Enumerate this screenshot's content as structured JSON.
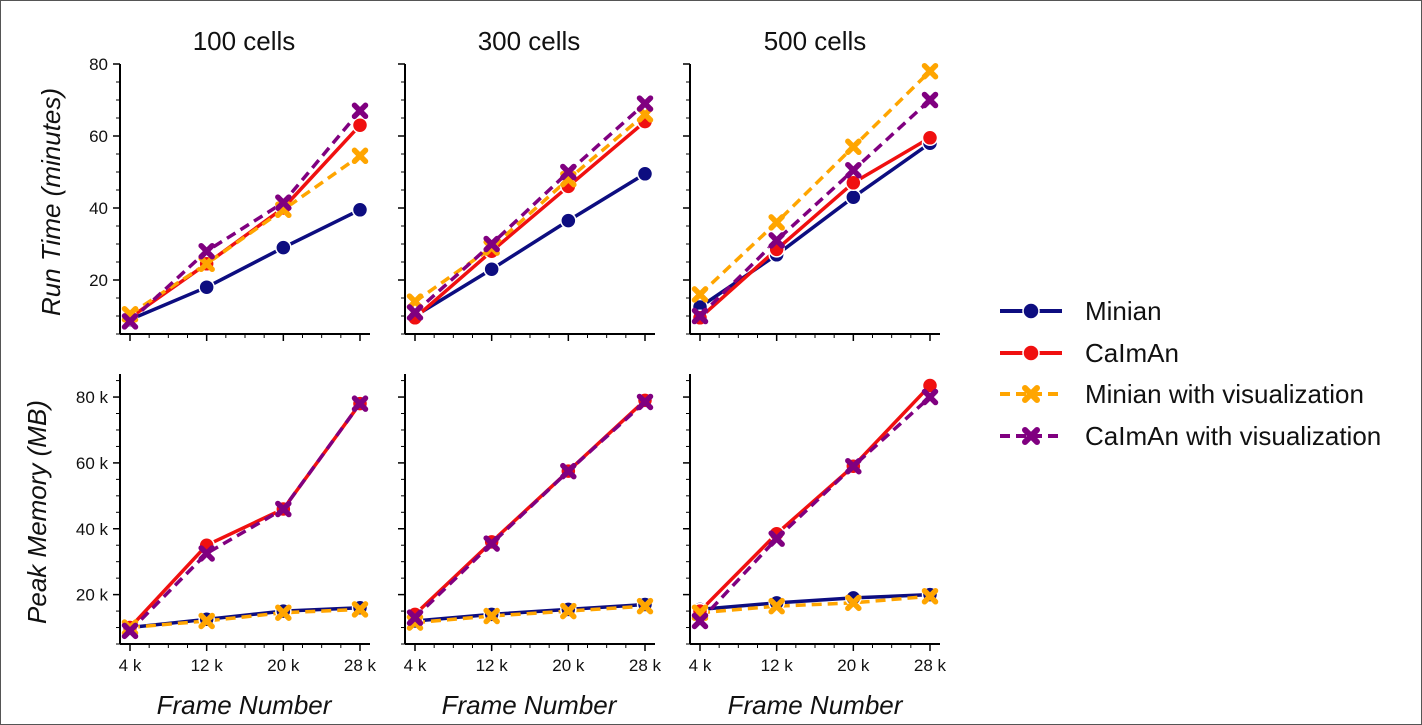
{
  "figure": {
    "columns": [
      "100 cells",
      "300 cells",
      "500 cells"
    ],
    "row_labels": [
      "Run Time (minutes)",
      "Peak Memory (MB)"
    ],
    "xlabel": "Frame Number"
  },
  "legend": [
    {
      "name": "Minian",
      "color": "#0d0d80",
      "style": "solid",
      "marker": "circle"
    },
    {
      "name": "CaImAn",
      "color": "#f01010",
      "style": "solid",
      "marker": "circle"
    },
    {
      "name": "Minian with visualization",
      "color": "#ffa500",
      "style": "dashed",
      "marker": "x"
    },
    {
      "name": "CaImAn with visualization",
      "color": "#800080",
      "style": "dashed",
      "marker": "x"
    }
  ],
  "chart_data": [
    {
      "type": "line",
      "title": "100 cells",
      "xlabel": "",
      "ylabel": "Run Time (minutes)",
      "x": [
        4000,
        12000,
        20000,
        28000
      ],
      "ylim": [
        5,
        80
      ],
      "yticks": [
        20,
        40,
        60,
        80
      ],
      "ytick_labels": [
        "20",
        "40",
        "60",
        "80"
      ],
      "xtick_labels": [],
      "series": [
        {
          "name": "Minian",
          "values": [
            9,
            18,
            29,
            39.5
          ]
        },
        {
          "name": "CaImAn",
          "values": [
            9.5,
            24.5,
            40,
            63
          ]
        },
        {
          "name": "Minian with visualization",
          "values": [
            10.5,
            24.5,
            39.5,
            54.5
          ]
        },
        {
          "name": "CaImAn with visualization",
          "values": [
            8.5,
            28,
            41.5,
            67
          ]
        }
      ]
    },
    {
      "type": "line",
      "title": "300 cells",
      "xlabel": "",
      "ylabel": "",
      "x": [
        4000,
        12000,
        20000,
        28000
      ],
      "ylim": [
        5,
        80
      ],
      "yticks": [
        20,
        40,
        60,
        80
      ],
      "ytick_labels": [],
      "xtick_labels": [],
      "series": [
        {
          "name": "Minian",
          "values": [
            10,
            23,
            36.5,
            49.5
          ]
        },
        {
          "name": "CaImAn",
          "values": [
            9.5,
            28,
            46,
            64
          ]
        },
        {
          "name": "Minian with visualization",
          "values": [
            14,
            29,
            48,
            66
          ]
        },
        {
          "name": "CaImAn with visualization",
          "values": [
            11,
            30,
            50,
            69
          ]
        }
      ]
    },
    {
      "type": "line",
      "title": "500 cells",
      "xlabel": "",
      "ylabel": "",
      "x": [
        4000,
        12000,
        20000,
        28000
      ],
      "ylim": [
        5,
        80
      ],
      "yticks": [
        20,
        40,
        60,
        80
      ],
      "ytick_labels": [],
      "xtick_labels": [],
      "series": [
        {
          "name": "Minian",
          "values": [
            12.5,
            27,
            43,
            58
          ]
        },
        {
          "name": "CaImAn",
          "values": [
            9.5,
            28.5,
            47,
            59.5
          ]
        },
        {
          "name": "Minian with visualization",
          "values": [
            16,
            36,
            57,
            78
          ]
        },
        {
          "name": "CaImAn with visualization",
          "values": [
            10,
            31,
            50.5,
            70
          ]
        }
      ]
    },
    {
      "type": "line",
      "title": "",
      "xlabel": "Frame Number",
      "ylabel": "Peak Memory (MB)",
      "x": [
        4000,
        12000,
        20000,
        28000
      ],
      "ylim": [
        5000,
        87000
      ],
      "yticks": [
        20000,
        40000,
        60000,
        80000
      ],
      "ytick_labels": [
        "20 k",
        "40 k",
        "60 k",
        "80 k"
      ],
      "xtick_labels": [
        "4 k",
        "12 k",
        "20 k",
        "28 k"
      ],
      "series": [
        {
          "name": "Minian",
          "values": [
            10000,
            12500,
            15000,
            16000
          ]
        },
        {
          "name": "CaImAn",
          "values": [
            10000,
            35000,
            46000,
            78000
          ]
        },
        {
          "name": "Minian with visualization",
          "values": [
            10000,
            12000,
            14500,
            15500
          ]
        },
        {
          "name": "CaImAn with visualization",
          "values": [
            9000,
            32500,
            46000,
            78000
          ]
        }
      ]
    },
    {
      "type": "line",
      "title": "",
      "xlabel": "Frame Number",
      "ylabel": "",
      "x": [
        4000,
        12000,
        20000,
        28000
      ],
      "ylim": [
        5000,
        87000
      ],
      "yticks": [
        20000,
        40000,
        60000,
        80000
      ],
      "ytick_labels": [],
      "xtick_labels": [
        "4 k",
        "12 k",
        "20 k",
        "28 k"
      ],
      "series": [
        {
          "name": "Minian",
          "values": [
            12000,
            14000,
            15500,
            17000
          ]
        },
        {
          "name": "CaImAn",
          "values": [
            14000,
            36000,
            57500,
            79000
          ]
        },
        {
          "name": "Minian with visualization",
          "values": [
            11500,
            13500,
            15000,
            16500
          ]
        },
        {
          "name": "CaImAn with visualization",
          "values": [
            13000,
            35500,
            57500,
            78500
          ]
        }
      ]
    },
    {
      "type": "line",
      "title": "",
      "xlabel": "Frame Number",
      "ylabel": "",
      "x": [
        4000,
        12000,
        20000,
        28000
      ],
      "ylim": [
        5000,
        87000
      ],
      "yticks": [
        20000,
        40000,
        60000,
        80000
      ],
      "ytick_labels": [],
      "xtick_labels": [
        "4 k",
        "12 k",
        "20 k",
        "28 k"
      ],
      "series": [
        {
          "name": "Minian",
          "values": [
            15500,
            17500,
            19000,
            20000
          ]
        },
        {
          "name": "CaImAn",
          "values": [
            15000,
            38500,
            59000,
            83500
          ]
        },
        {
          "name": "Minian with visualization",
          "values": [
            14500,
            16500,
            17500,
            19500
          ]
        },
        {
          "name": "CaImAn with visualization",
          "values": [
            12000,
            37000,
            59000,
            80000
          ]
        }
      ]
    }
  ]
}
